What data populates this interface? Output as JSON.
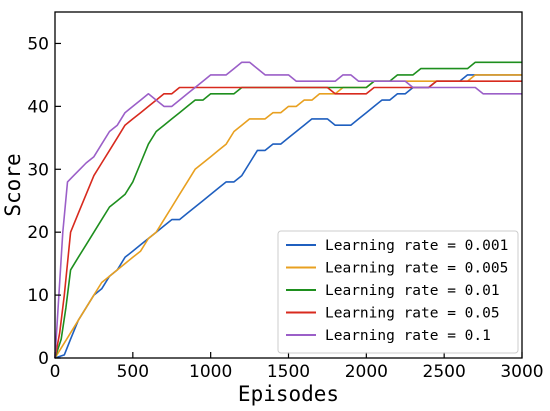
{
  "chart_data": {
    "type": "line",
    "title": "",
    "xlabel": "Episodes",
    "ylabel": "Score",
    "xlim": [
      0,
      3000
    ],
    "ylim": [
      0,
      55
    ],
    "xticks": [
      0,
      500,
      1000,
      1500,
      2000,
      2500,
      3000
    ],
    "yticks": [
      0,
      10,
      20,
      30,
      40,
      50
    ],
    "grid": false,
    "legend_position": "lower-right",
    "series": [
      {
        "name": "Learning rate = 0.001",
        "color": "#1f5fbf",
        "points": [
          [
            0,
            0
          ],
          [
            60,
            0.5
          ],
          [
            100,
            3
          ],
          [
            150,
            6
          ],
          [
            200,
            8
          ],
          [
            250,
            10
          ],
          [
            300,
            11
          ],
          [
            350,
            13
          ],
          [
            400,
            14
          ],
          [
            450,
            16
          ],
          [
            500,
            17
          ],
          [
            550,
            18
          ],
          [
            600,
            19
          ],
          [
            650,
            20
          ],
          [
            700,
            21
          ],
          [
            750,
            22
          ],
          [
            800,
            22
          ],
          [
            850,
            23
          ],
          [
            900,
            24
          ],
          [
            950,
            25
          ],
          [
            1000,
            26
          ],
          [
            1050,
            27
          ],
          [
            1100,
            28
          ],
          [
            1150,
            28
          ],
          [
            1200,
            29
          ],
          [
            1250,
            31
          ],
          [
            1300,
            33
          ],
          [
            1350,
            33
          ],
          [
            1400,
            34
          ],
          [
            1450,
            34
          ],
          [
            1500,
            35
          ],
          [
            1550,
            36
          ],
          [
            1600,
            37
          ],
          [
            1650,
            38
          ],
          [
            1700,
            38
          ],
          [
            1750,
            38
          ],
          [
            1800,
            37
          ],
          [
            1850,
            37
          ],
          [
            1900,
            37
          ],
          [
            1950,
            38
          ],
          [
            2000,
            39
          ],
          [
            2050,
            40
          ],
          [
            2100,
            41
          ],
          [
            2150,
            41
          ],
          [
            2200,
            42
          ],
          [
            2250,
            42
          ],
          [
            2300,
            43
          ],
          [
            2350,
            43
          ],
          [
            2400,
            43
          ],
          [
            2450,
            44
          ],
          [
            2500,
            44
          ],
          [
            2550,
            44
          ],
          [
            2600,
            44
          ],
          [
            2650,
            45
          ],
          [
            2700,
            45
          ],
          [
            2750,
            45
          ],
          [
            2800,
            45
          ],
          [
            2850,
            45
          ],
          [
            2900,
            45
          ],
          [
            2950,
            45
          ],
          [
            3000,
            45
          ]
        ]
      },
      {
        "name": "Learning rate = 0.005",
        "color": "#e8a020",
        "points": [
          [
            0,
            0
          ],
          [
            50,
            2
          ],
          [
            100,
            4
          ],
          [
            150,
            6
          ],
          [
            200,
            8
          ],
          [
            250,
            10
          ],
          [
            300,
            12
          ],
          [
            350,
            13
          ],
          [
            400,
            14
          ],
          [
            450,
            15
          ],
          [
            500,
            16
          ],
          [
            550,
            17
          ],
          [
            600,
            19
          ],
          [
            650,
            20
          ],
          [
            700,
            22
          ],
          [
            750,
            24
          ],
          [
            800,
            26
          ],
          [
            850,
            28
          ],
          [
            900,
            30
          ],
          [
            950,
            31
          ],
          [
            1000,
            32
          ],
          [
            1050,
            33
          ],
          [
            1100,
            34
          ],
          [
            1150,
            36
          ],
          [
            1200,
            37
          ],
          [
            1250,
            38
          ],
          [
            1300,
            38
          ],
          [
            1350,
            38
          ],
          [
            1400,
            39
          ],
          [
            1450,
            39
          ],
          [
            1500,
            40
          ],
          [
            1550,
            40
          ],
          [
            1600,
            41
          ],
          [
            1650,
            41
          ],
          [
            1700,
            42
          ],
          [
            1750,
            42
          ],
          [
            1800,
            42
          ],
          [
            1850,
            43
          ],
          [
            1900,
            43
          ],
          [
            1950,
            43
          ],
          [
            2000,
            43
          ],
          [
            2050,
            44
          ],
          [
            2100,
            44
          ],
          [
            2150,
            44
          ],
          [
            2200,
            44
          ],
          [
            2250,
            44
          ],
          [
            2300,
            44
          ],
          [
            2350,
            44
          ],
          [
            2400,
            44
          ],
          [
            2450,
            44
          ],
          [
            2500,
            44
          ],
          [
            2550,
            44
          ],
          [
            2600,
            44
          ],
          [
            2650,
            44
          ],
          [
            2700,
            45
          ],
          [
            2750,
            45
          ],
          [
            2800,
            45
          ],
          [
            2850,
            45
          ],
          [
            2900,
            45
          ],
          [
            2950,
            45
          ],
          [
            3000,
            45
          ]
        ]
      },
      {
        "name": "Learning rate = 0.01",
        "color": "#1e8f1e",
        "points": [
          [
            0,
            0
          ],
          [
            40,
            3
          ],
          [
            70,
            8
          ],
          [
            100,
            14
          ],
          [
            150,
            16
          ],
          [
            200,
            18
          ],
          [
            250,
            20
          ],
          [
            300,
            22
          ],
          [
            350,
            24
          ],
          [
            400,
            25
          ],
          [
            450,
            26
          ],
          [
            500,
            28
          ],
          [
            550,
            31
          ],
          [
            600,
            34
          ],
          [
            650,
            36
          ],
          [
            700,
            37
          ],
          [
            750,
            38
          ],
          [
            800,
            39
          ],
          [
            850,
            40
          ],
          [
            900,
            41
          ],
          [
            950,
            41
          ],
          [
            1000,
            42
          ],
          [
            1050,
            42
          ],
          [
            1100,
            42
          ],
          [
            1150,
            42
          ],
          [
            1200,
            43
          ],
          [
            1250,
            43
          ],
          [
            1300,
            43
          ],
          [
            1350,
            43
          ],
          [
            1400,
            43
          ],
          [
            1450,
            43
          ],
          [
            1500,
            43
          ],
          [
            1550,
            43
          ],
          [
            1600,
            43
          ],
          [
            1650,
            43
          ],
          [
            1700,
            43
          ],
          [
            1750,
            43
          ],
          [
            1800,
            43
          ],
          [
            1850,
            43
          ],
          [
            1900,
            43
          ],
          [
            1950,
            43
          ],
          [
            2000,
            43
          ],
          [
            2050,
            44
          ],
          [
            2100,
            44
          ],
          [
            2150,
            44
          ],
          [
            2200,
            45
          ],
          [
            2250,
            45
          ],
          [
            2300,
            45
          ],
          [
            2350,
            46
          ],
          [
            2400,
            46
          ],
          [
            2450,
            46
          ],
          [
            2500,
            46
          ],
          [
            2550,
            46
          ],
          [
            2600,
            46
          ],
          [
            2650,
            46
          ],
          [
            2700,
            47
          ],
          [
            2750,
            47
          ],
          [
            2800,
            47
          ],
          [
            2850,
            47
          ],
          [
            2900,
            47
          ],
          [
            2950,
            47
          ],
          [
            3000,
            47
          ]
        ]
      },
      {
        "name": "Learning rate = 0.05",
        "color": "#d82a1e",
        "points": [
          [
            0,
            0
          ],
          [
            30,
            4
          ],
          [
            60,
            10
          ],
          [
            100,
            20
          ],
          [
            150,
            23
          ],
          [
            200,
            26
          ],
          [
            250,
            29
          ],
          [
            300,
            31
          ],
          [
            350,
            33
          ],
          [
            400,
            35
          ],
          [
            450,
            37
          ],
          [
            500,
            38
          ],
          [
            550,
            39
          ],
          [
            600,
            40
          ],
          [
            650,
            41
          ],
          [
            700,
            42
          ],
          [
            750,
            42
          ],
          [
            800,
            43
          ],
          [
            850,
            43
          ],
          [
            900,
            43
          ],
          [
            950,
            43
          ],
          [
            1000,
            43
          ],
          [
            1050,
            43
          ],
          [
            1100,
            43
          ],
          [
            1150,
            43
          ],
          [
            1200,
            43
          ],
          [
            1250,
            43
          ],
          [
            1300,
            43
          ],
          [
            1350,
            43
          ],
          [
            1400,
            43
          ],
          [
            1450,
            43
          ],
          [
            1500,
            43
          ],
          [
            1550,
            43
          ],
          [
            1600,
            43
          ],
          [
            1650,
            43
          ],
          [
            1700,
            43
          ],
          [
            1750,
            43
          ],
          [
            1800,
            42
          ],
          [
            1850,
            42
          ],
          [
            1900,
            42
          ],
          [
            1950,
            42
          ],
          [
            2000,
            42
          ],
          [
            2050,
            43
          ],
          [
            2100,
            43
          ],
          [
            2150,
            43
          ],
          [
            2200,
            43
          ],
          [
            2250,
            43
          ],
          [
            2300,
            43
          ],
          [
            2350,
            43
          ],
          [
            2400,
            43
          ],
          [
            2450,
            44
          ],
          [
            2500,
            44
          ],
          [
            2550,
            44
          ],
          [
            2600,
            44
          ],
          [
            2650,
            44
          ],
          [
            2700,
            44
          ],
          [
            2750,
            44
          ],
          [
            2800,
            44
          ],
          [
            2850,
            44
          ],
          [
            2900,
            44
          ],
          [
            2950,
            44
          ],
          [
            3000,
            44
          ]
        ]
      },
      {
        "name": "Learning rate = 0.1",
        "color": "#9b5fc8",
        "points": [
          [
            0,
            0
          ],
          [
            20,
            8
          ],
          [
            50,
            20
          ],
          [
            80,
            28
          ],
          [
            120,
            29
          ],
          [
            160,
            30
          ],
          [
            200,
            31
          ],
          [
            250,
            32
          ],
          [
            300,
            34
          ],
          [
            350,
            36
          ],
          [
            400,
            37
          ],
          [
            450,
            39
          ],
          [
            500,
            40
          ],
          [
            550,
            41
          ],
          [
            600,
            42
          ],
          [
            650,
            41
          ],
          [
            700,
            40
          ],
          [
            750,
            40
          ],
          [
            800,
            41
          ],
          [
            850,
            42
          ],
          [
            900,
            43
          ],
          [
            950,
            44
          ],
          [
            1000,
            45
          ],
          [
            1050,
            45
          ],
          [
            1100,
            45
          ],
          [
            1150,
            46
          ],
          [
            1200,
            47
          ],
          [
            1250,
            47
          ],
          [
            1300,
            46
          ],
          [
            1350,
            45
          ],
          [
            1400,
            45
          ],
          [
            1450,
            45
          ],
          [
            1500,
            45
          ],
          [
            1550,
            44
          ],
          [
            1600,
            44
          ],
          [
            1650,
            44
          ],
          [
            1700,
            44
          ],
          [
            1750,
            44
          ],
          [
            1800,
            44
          ],
          [
            1850,
            45
          ],
          [
            1900,
            45
          ],
          [
            1950,
            44
          ],
          [
            2000,
            44
          ],
          [
            2050,
            44
          ],
          [
            2100,
            44
          ],
          [
            2150,
            44
          ],
          [
            2200,
            44
          ],
          [
            2250,
            44
          ],
          [
            2300,
            43
          ],
          [
            2350,
            43
          ],
          [
            2400,
            43
          ],
          [
            2450,
            43
          ],
          [
            2500,
            43
          ],
          [
            2550,
            43
          ],
          [
            2600,
            43
          ],
          [
            2650,
            43
          ],
          [
            2700,
            43
          ],
          [
            2750,
            42
          ],
          [
            2800,
            42
          ],
          [
            2850,
            42
          ],
          [
            2900,
            42
          ],
          [
            2950,
            42
          ],
          [
            3000,
            42
          ]
        ]
      }
    ]
  }
}
